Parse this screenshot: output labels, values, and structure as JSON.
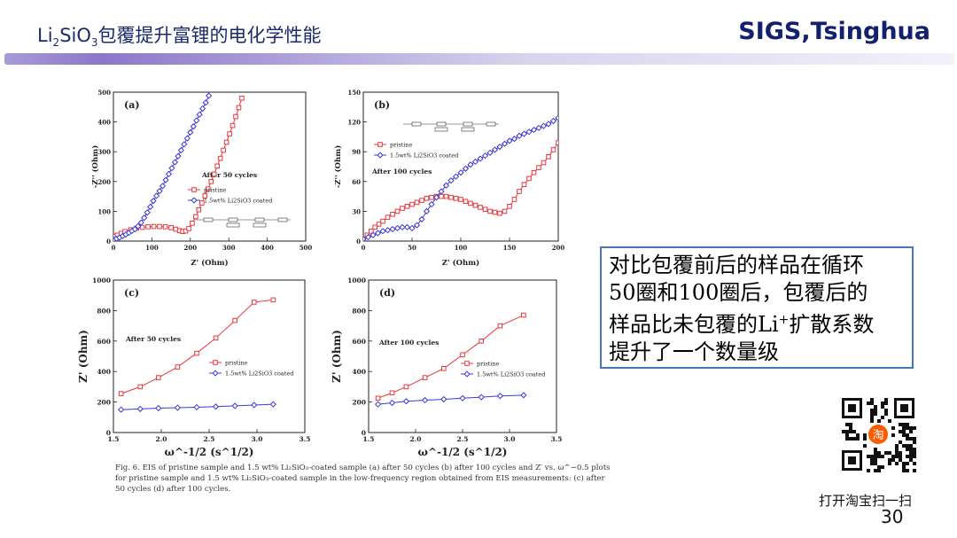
{
  "header": {
    "title_li": "Li",
    "title_sub1": "2",
    "title_si": "SiO",
    "title_sub2": "3",
    "title_rest": "包覆提升富锂的电化学性能",
    "brand": "SIGS,Tsinghua"
  },
  "note": {
    "line1": "对比包覆前后的样品在循环",
    "line2": "50圈和100圈后，包覆后的",
    "line3a": "样品比未包覆的Li",
    "line3sup": "+",
    "line3b": "扩散系数",
    "line4": "提升了一个数量级"
  },
  "caption": {
    "text": "Fig. 6.  EIS of pristine sample and 1.5 wt% Li₂SiO₃-coated sample (a) after 50 cycles (b) after 100 cycles and Z′ vs. ω^−0.5 plots for pristine sample and 1.5 wt% Li₂SiO₃-coated sample in the low-frequency region obtained from EIS measurements: (c) after 50 cycles (d) after 100 cycles."
  },
  "qr_label": "打开淘宝扫一扫",
  "qr_badge": "淘",
  "page_number": "30",
  "colors": {
    "pristine": "#e8383d",
    "coated": "#3a3ad6",
    "accent": "#13206e"
  },
  "chart_data": [
    {
      "type": "scatter",
      "panel": "(a)",
      "annotation": "After  50 cycles",
      "xlabel": "Z' (Ohm)",
      "ylabel": "-Z'' (Ohm)",
      "xlim": [
        0,
        500
      ],
      "ylim": [
        0,
        500
      ],
      "xticks": [
        0,
        100,
        200,
        300,
        400,
        500
      ],
      "yticks": [
        0,
        100,
        200,
        300,
        400,
        500
      ],
      "series": [
        {
          "name": "pristine",
          "marker": "square",
          "x": [
            0,
            5,
            10,
            20,
            30,
            45,
            60,
            75,
            90,
            105,
            120,
            135,
            150,
            162,
            172,
            180,
            188,
            196,
            205,
            214,
            222,
            230,
            238,
            246,
            254,
            262,
            270,
            278,
            286,
            294,
            302,
            310,
            318,
            326,
            334
          ],
          "y": [
            12,
            16,
            20,
            26,
            32,
            38,
            43,
            46,
            48,
            49,
            49,
            48,
            45,
            40,
            35,
            32,
            34,
            42,
            60,
            82,
            105,
            128,
            152,
            175,
            200,
            225,
            252,
            278,
            305,
            332,
            360,
            388,
            418,
            448,
            480
          ]
        },
        {
          "name": "1.5wt% Li2SiO3 coated",
          "marker": "diamond",
          "x": [
            0,
            8,
            16,
            24,
            32,
            40,
            48,
            56,
            64,
            72,
            80,
            88,
            96,
            104,
            112,
            120,
            128,
            136,
            144,
            152,
            160,
            168,
            176,
            184,
            192,
            200,
            208,
            216,
            224,
            232,
            240,
            248
          ],
          "y": [
            5,
            8,
            12,
            17,
            22,
            28,
            34,
            40,
            50,
            62,
            78,
            96,
            115,
            135,
            152,
            168,
            185,
            205,
            225,
            245,
            265,
            285,
            305,
            325,
            345,
            365,
            385,
            405,
            425,
            445,
            465,
            488
          ]
        }
      ]
    },
    {
      "type": "scatter",
      "panel": "(b)",
      "annotation": "After 100 cycles",
      "xlabel": "Z' (Ohm)",
      "ylabel": "-Z'' (Ohm)",
      "xlim": [
        0,
        200
      ],
      "ylim": [
        0,
        150
      ],
      "xticks": [
        0,
        50,
        100,
        150,
        200
      ],
      "yticks": [
        0,
        30,
        60,
        90,
        120,
        150
      ],
      "series": [
        {
          "name": "pristine",
          "marker": "square",
          "x": [
            0,
            4,
            8,
            12,
            16,
            20,
            25,
            30,
            35,
            40,
            45,
            50,
            55,
            60,
            65,
            70,
            75,
            80,
            85,
            90,
            95,
            100,
            105,
            110,
            115,
            120,
            125,
            130,
            135,
            140,
            145,
            150,
            155,
            160,
            165,
            170,
            175,
            180,
            185,
            190,
            195,
            200
          ],
          "y": [
            2,
            6,
            10,
            14,
            17,
            20,
            24,
            27,
            30,
            33,
            35,
            37,
            39,
            41,
            43,
            44,
            45,
            45,
            45,
            44,
            43,
            42,
            40,
            38,
            36,
            34,
            32,
            30,
            29,
            28,
            30,
            35,
            42,
            50,
            57,
            63,
            69,
            74,
            79,
            85,
            92,
            99
          ]
        },
        {
          "name": "1.5wt% Li2SiO3 coated",
          "marker": "diamond",
          "x": [
            0,
            5,
            10,
            15,
            20,
            25,
            30,
            35,
            40,
            45,
            50,
            55,
            60,
            65,
            70,
            75,
            80,
            85,
            90,
            95,
            100,
            105,
            110,
            115,
            120,
            125,
            130,
            135,
            140,
            145,
            150,
            155,
            160,
            165,
            170,
            175,
            180,
            185,
            190,
            195,
            200
          ],
          "y": [
            2,
            4,
            6,
            8,
            10,
            11,
            12,
            13,
            14,
            14,
            13,
            16,
            22,
            30,
            37,
            44,
            50,
            56,
            61,
            65,
            69,
            73,
            77,
            80,
            83,
            86,
            89,
            92,
            95,
            98,
            101,
            103,
            106,
            108,
            110,
            112,
            114,
            116,
            118,
            121,
            124
          ]
        }
      ]
    },
    {
      "type": "line",
      "panel": "(c)",
      "annotation": "After  50 cycles",
      "xlabel": "ω^-1/2 (s^1/2)",
      "ylabel": "Z' (Ohm)",
      "xlim": [
        1.5,
        3.5
      ],
      "ylim": [
        0,
        1000
      ],
      "xticks": [
        1.5,
        2.0,
        2.5,
        3.0,
        3.5
      ],
      "yticks": [
        0,
        200,
        400,
        600,
        800,
        1000
      ],
      "series": [
        {
          "name": "pristine",
          "marker": "square",
          "x": [
            1.58,
            1.78,
            1.97,
            2.17,
            2.37,
            2.57,
            2.77,
            2.97,
            3.17
          ],
          "y": [
            255,
            300,
            360,
            430,
            520,
            620,
            735,
            855,
            870
          ]
        },
        {
          "name": "1.5wt% Li2SiO3 coated",
          "marker": "diamond",
          "x": [
            1.58,
            1.78,
            1.97,
            2.17,
            2.37,
            2.57,
            2.77,
            2.97,
            3.17
          ],
          "y": [
            150,
            155,
            160,
            163,
            166,
            170,
            175,
            180,
            185
          ]
        }
      ]
    },
    {
      "type": "line",
      "panel": "(d)",
      "annotation": "After 100 cycles",
      "xlabel": "ω^-1/2 (s^1/2)",
      "ylabel": "Z' (Ohm)",
      "xlim": [
        1.5,
        3.5
      ],
      "ylim": [
        0,
        1000
      ],
      "xticks": [
        1.5,
        2.0,
        2.5,
        3.0,
        3.5
      ],
      "yticks": [
        0,
        200,
        400,
        600,
        800,
        1000
      ],
      "series": [
        {
          "name": "pristine",
          "marker": "square",
          "x": [
            1.6,
            1.75,
            1.9,
            2.1,
            2.3,
            2.5,
            2.7,
            2.9,
            3.15
          ],
          "y": [
            225,
            260,
            300,
            360,
            420,
            510,
            600,
            700,
            770
          ]
        },
        {
          "name": "1.5wt% Li2SiO3 coated",
          "marker": "diamond",
          "x": [
            1.6,
            1.75,
            1.9,
            2.1,
            2.3,
            2.5,
            2.7,
            2.9,
            3.15
          ],
          "y": [
            185,
            195,
            205,
            212,
            218,
            225,
            232,
            240,
            245
          ]
        }
      ]
    }
  ]
}
